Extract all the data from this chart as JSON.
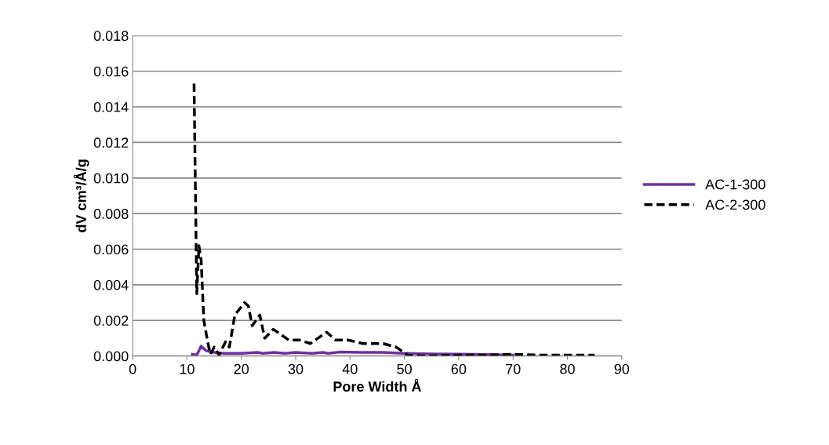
{
  "chart_data": {
    "type": "line",
    "xlabel": "Pore Width Å",
    "ylabel": "dV cm³/Å/g",
    "xlim": [
      0,
      90
    ],
    "xticks": [
      0,
      10,
      20,
      30,
      40,
      50,
      60,
      70,
      80,
      90
    ],
    "ylim": [
      0,
      0.018
    ],
    "yticks": [
      {
        "value": 0,
        "label": "0.000"
      },
      {
        "value": 0.002,
        "label": "0.002"
      },
      {
        "value": 0.004,
        "label": "0.004"
      },
      {
        "value": 0.006,
        "label": "0.006"
      },
      {
        "value": 0.008,
        "label": "0.008"
      },
      {
        "value": 0.01,
        "label": "0.010"
      },
      {
        "value": 0.012,
        "label": "0.012"
      },
      {
        "value": 0.014,
        "label": "0.014"
      },
      {
        "value": 0.016,
        "label": "0.016"
      },
      {
        "value": 0.018,
        "label": "0.018"
      }
    ],
    "grid": "y",
    "legend": "right",
    "series": [
      {
        "name": "AC-1-300",
        "color": "#7030a0",
        "line_style": "solid",
        "x": [
          11,
          11.8,
          12.6,
          13.5,
          15,
          17,
          20,
          23,
          24,
          26,
          28,
          30,
          33,
          35,
          36,
          38,
          42,
          46,
          50,
          55,
          60,
          65,
          70
        ],
        "values": [
          0.0001,
          5e-05,
          0.00055,
          0.0003,
          0.0002,
          0.00015,
          0.00015,
          0.0002,
          0.00015,
          0.0002,
          0.00015,
          0.0002,
          0.00015,
          0.0002,
          0.00015,
          0.00022,
          0.0002,
          0.0002,
          0.00015,
          0.00012,
          0.0001,
          8e-05,
          5e-05
        ]
      },
      {
        "name": "AC-2-300",
        "color": "#000000",
        "line_style": "dashed",
        "x": [
          11.3,
          11.8,
          12.2,
          12.6,
          13.1,
          13.8,
          14.3,
          15.0,
          15.9,
          17.1,
          17.8,
          18.8,
          20.6,
          21.3,
          22.0,
          23.4,
          24.3,
          25.9,
          28.7,
          30.6,
          32.7,
          35.7,
          37.3,
          39.6,
          42.4,
          46.1,
          48.5,
          50.6,
          53.2,
          60,
          65,
          70,
          75,
          80,
          85
        ],
        "values": [
          0.0153,
          0.0035,
          0.0062,
          0.0054,
          0.002,
          0.0008,
          0.0001,
          0.0005,
          5e-05,
          0.0008,
          0.0005,
          0.0023,
          0.003,
          0.0028,
          0.0017,
          0.0023,
          0.001,
          0.0015,
          0.0009,
          0.0009,
          0.0007,
          0.00134,
          0.0009,
          0.0009,
          0.0007,
          0.0007,
          0.0005,
          5e-05,
          0.0,
          5e-05,
          5e-05,
          0.0001,
          5e-05,
          5e-05,
          5e-05
        ]
      }
    ]
  }
}
